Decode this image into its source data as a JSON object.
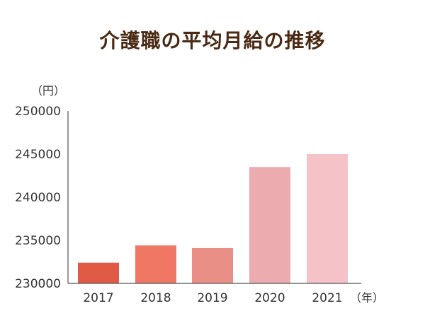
{
  "chart_data": {
    "type": "bar",
    "title": "介護職の平均月給の推移",
    "ylabel": "（円）",
    "xlabel": "（年）",
    "categories": [
      "2017",
      "2018",
      "2019",
      "2020",
      "2021"
    ],
    "values": [
      232400,
      234400,
      234100,
      243500,
      245000
    ],
    "ylim": [
      230000,
      250000
    ],
    "yticks": [
      "250000",
      "245000",
      "240000",
      "235000",
      "230000"
    ],
    "ytick_values": [
      250000,
      245000,
      240000,
      235000,
      230000
    ],
    "grid": false,
    "legend": "none",
    "colors": [
      "#e05a45",
      "#ef7763",
      "#ea8f85",
      "#ebabaf",
      "#f4c2c7"
    ],
    "axis_color": "#555555"
  }
}
